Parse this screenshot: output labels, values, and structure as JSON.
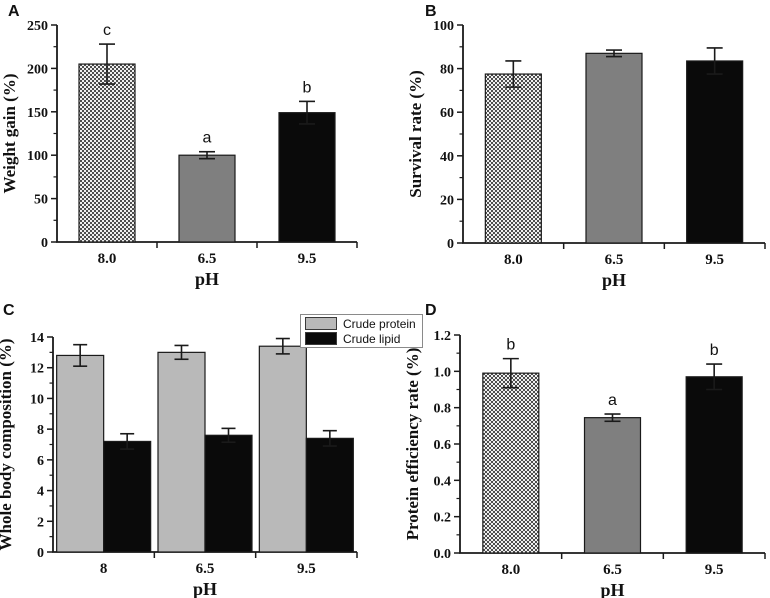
{
  "figure_title": "",
  "colors": {
    "background": "#ffffff",
    "axis": "#1a1a1a",
    "error_bar": "#1a1a1a",
    "bar_hatch_dark": "#4d4d4d",
    "bar_hatch_light": "#efefef",
    "bar_gray": "#7f7f7f",
    "bar_lightgray": "#b9b9b9",
    "bar_black": "#0a0a0a",
    "legend_border": "#8a8a8a"
  },
  "legend": {
    "entries": [
      {
        "label": "Crude protein",
        "fill": "bar_lightgray"
      },
      {
        "label": "Crude lipid",
        "fill": "bar_black"
      }
    ]
  },
  "chart_data": [
    {
      "panel": "A",
      "type": "bar",
      "title": "",
      "xlabel": "pH",
      "ylabel": "Weight gain (%)",
      "ylim": [
        0,
        250
      ],
      "ytick_interval": 50,
      "ytick_decimals": 0,
      "minor_ticks": true,
      "grid": false,
      "categories": [
        "8.0",
        "6.5",
        "9.5"
      ],
      "series": [
        {
          "name": "Weight gain",
          "values": [
            205,
            100,
            149
          ],
          "errors": [
            23,
            4,
            13
          ],
          "fills": [
            "hatch",
            "gray",
            "black"
          ]
        }
      ],
      "sig_letters": [
        "c",
        "a",
        "b"
      ]
    },
    {
      "panel": "B",
      "type": "bar",
      "title": "",
      "xlabel": "pH",
      "ylabel": "Survival rate (%)",
      "ylim": [
        0,
        100
      ],
      "ytick_interval": 20,
      "ytick_decimals": 0,
      "minor_ticks": true,
      "grid": false,
      "categories": [
        "8.0",
        "6.5",
        "9.5"
      ],
      "series": [
        {
          "name": "Survival rate",
          "values": [
            77.5,
            87,
            83.5
          ],
          "errors": [
            6,
            1.5,
            6
          ],
          "fills": [
            "hatch",
            "gray",
            "black"
          ]
        }
      ],
      "sig_letters": null
    },
    {
      "panel": "C",
      "type": "bar",
      "title": "",
      "xlabel": "pH",
      "ylabel": "Whole body composition (%)",
      "ylim": [
        0,
        14
      ],
      "ytick_interval": 2,
      "ytick_decimals": 0,
      "minor_ticks": true,
      "grid": false,
      "legend_position": "top-right",
      "categories": [
        "8",
        "6.5",
        "9.5"
      ],
      "series": [
        {
          "name": "Crude protein",
          "values": [
            12.8,
            13.0,
            13.4
          ],
          "errors": [
            0.7,
            0.45,
            0.5
          ],
          "fills": [
            "lightgray",
            "lightgray",
            "lightgray"
          ]
        },
        {
          "name": "Crude lipid",
          "values": [
            7.2,
            7.6,
            7.4
          ],
          "errors": [
            0.5,
            0.45,
            0.5
          ],
          "fills": [
            "black",
            "black",
            "black"
          ]
        }
      ],
      "sig_letters": null
    },
    {
      "panel": "D",
      "type": "bar",
      "title": "",
      "xlabel": "pH",
      "ylabel": "Protein efficiency rate (%)",
      "ylim": [
        0,
        1.2
      ],
      "ytick_interval": 0.2,
      "ytick_decimals": 1,
      "minor_ticks": true,
      "grid": false,
      "categories": [
        "8.0",
        "6.5",
        "9.5"
      ],
      "series": [
        {
          "name": "Protein efficiency rate",
          "values": [
            0.99,
            0.745,
            0.97
          ],
          "errors": [
            0.08,
            0.02,
            0.07
          ],
          "fills": [
            "hatch",
            "gray",
            "black"
          ]
        }
      ],
      "sig_letters": [
        "b",
        "a",
        "b"
      ]
    }
  ]
}
